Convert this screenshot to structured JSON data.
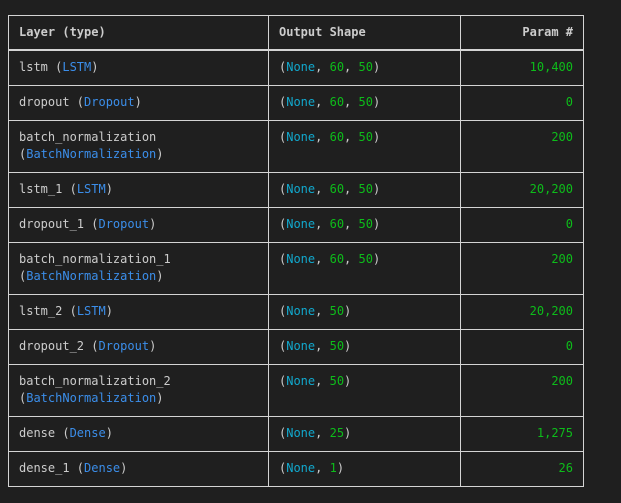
{
  "header": {
    "layer": "Layer (type)",
    "shape": "Output Shape",
    "param": "Param #"
  },
  "rows": [
    {
      "name": "lstm",
      "type": "LSTM",
      "shape": [
        "None",
        "60",
        "50"
      ],
      "param": "10,400",
      "wrap": false
    },
    {
      "name": "dropout",
      "type": "Dropout",
      "shape": [
        "None",
        "60",
        "50"
      ],
      "param": "0",
      "wrap": false
    },
    {
      "name": "batch_normalization",
      "type": "BatchNormalization",
      "shape": [
        "None",
        "60",
        "50"
      ],
      "param": "200",
      "wrap": true
    },
    {
      "name": "lstm_1",
      "type": "LSTM",
      "shape": [
        "None",
        "60",
        "50"
      ],
      "param": "20,200",
      "wrap": false
    },
    {
      "name": "dropout_1",
      "type": "Dropout",
      "shape": [
        "None",
        "60",
        "50"
      ],
      "param": "0",
      "wrap": false
    },
    {
      "name": "batch_normalization_1",
      "type": "BatchNormalization",
      "shape": [
        "None",
        "60",
        "50"
      ],
      "param": "200",
      "wrap": true
    },
    {
      "name": "lstm_2",
      "type": "LSTM",
      "shape": [
        "None",
        "50"
      ],
      "param": "20,200",
      "wrap": false
    },
    {
      "name": "dropout_2",
      "type": "Dropout",
      "shape": [
        "None",
        "50"
      ],
      "param": "0",
      "wrap": false
    },
    {
      "name": "batch_normalization_2",
      "type": "BatchNormalization",
      "shape": [
        "None",
        "50"
      ],
      "param": "200",
      "wrap": true
    },
    {
      "name": "dense",
      "type": "Dense",
      "shape": [
        "None",
        "25"
      ],
      "param": "1,275",
      "wrap": false
    },
    {
      "name": "dense_1",
      "type": "Dense",
      "shape": [
        "None",
        "1"
      ],
      "param": "26",
      "wrap": false
    }
  ],
  "colors": {
    "background": "#1f1f1f",
    "text": "#cccccc",
    "type": "#3b8eea",
    "none": "#11a8cd",
    "number": "#0dbc1a",
    "border": "#d4d4d4"
  }
}
